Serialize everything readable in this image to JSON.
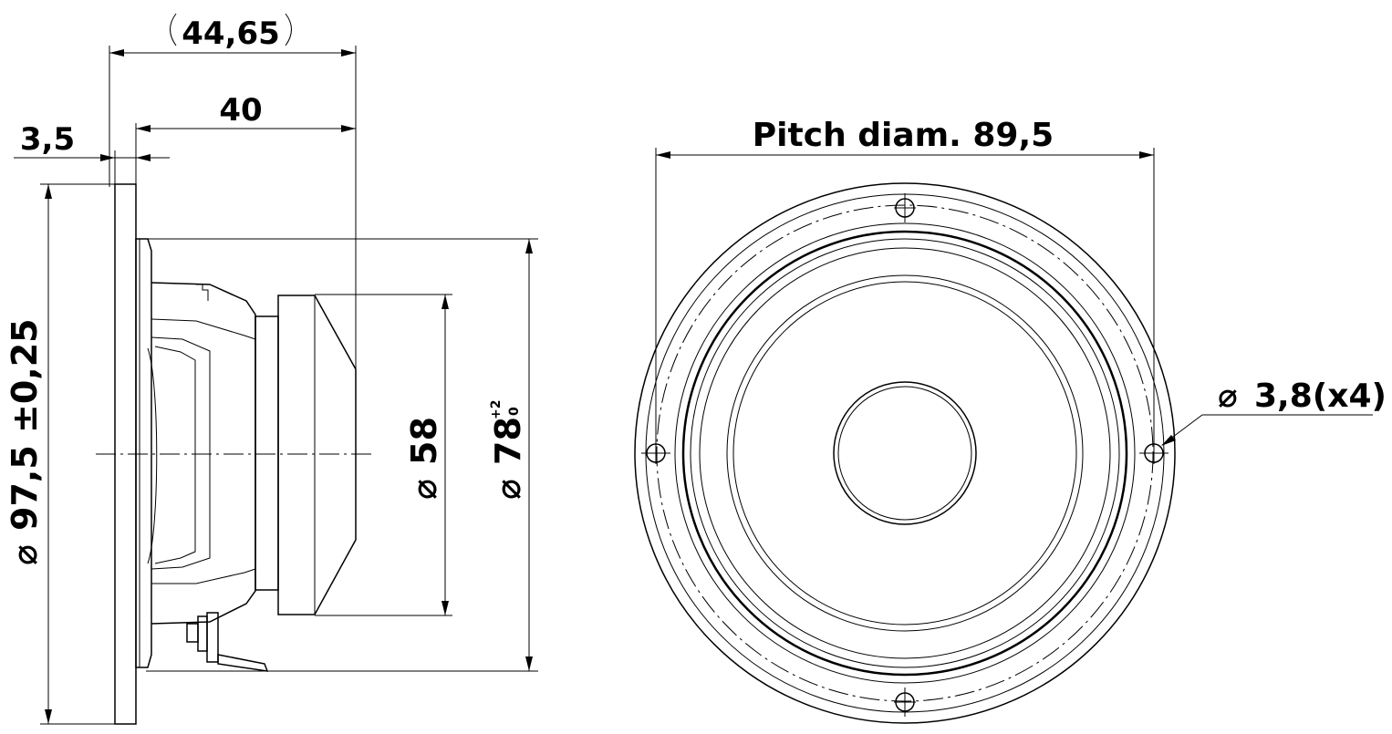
{
  "side_view": {
    "overall_depth": "44,65",
    "depth_to_magnet": "40",
    "flange_thickness": "3,5",
    "outer_diameter": "97,5 ±0,25",
    "magnet_diameter": "58",
    "cutout_diameter": "78",
    "cutout_tol_upper": "+2",
    "cutout_tol_lower": "0"
  },
  "front_view": {
    "pitch_diameter": "Pitch diam. 89,5",
    "hole_diameter": "3,8(x4)"
  },
  "symbols": {
    "diameter": "⌀"
  }
}
